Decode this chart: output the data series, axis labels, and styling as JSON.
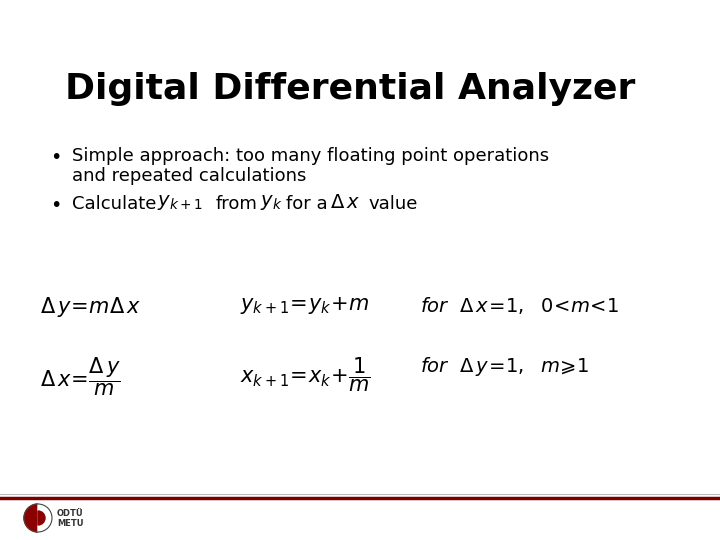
{
  "title": "Digital Differential Analyzer",
  "bg_color": "#ffffff",
  "title_color": "#000000",
  "title_fontsize": 26,
  "body_fontsize": 13,
  "formula_fontsize": 15,
  "footer_line_color": "#7a0000",
  "footer_line_color2": "#bbbbbb",
  "text_color": "#000000",
  "bullet1_line1": "Simple approach: too many floating point operations",
  "bullet1_line2": "and repeated calculations"
}
